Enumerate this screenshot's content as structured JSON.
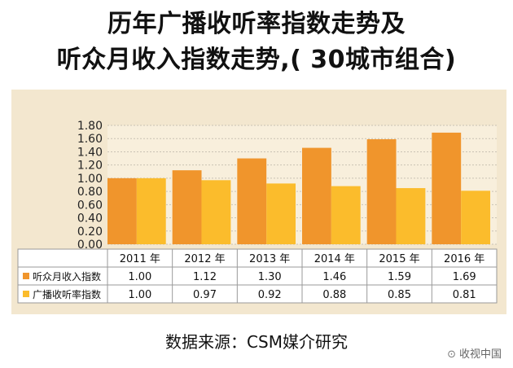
{
  "title_line1": "历年广播收听率指数走势及",
  "title_line2": "听众月收入指数走势,( 30城市组合)",
  "source": "数据来源：CSM媒介研究",
  "watermark": "收视中国",
  "chart_data": {
    "type": "bar",
    "categories": [
      "2011 年",
      "2012 年",
      "2013 年",
      "2014 年",
      "2015 年",
      "2016 年"
    ],
    "series": [
      {
        "name": "听众月收入指数",
        "values": [
          1.0,
          1.12,
          1.3,
          1.46,
          1.59,
          1.69
        ],
        "labels": [
          "1.00",
          "1.12",
          "1.30",
          "1.46",
          "1.59",
          "1.69"
        ],
        "color": "#f0952c"
      },
      {
        "name": "广播收听率指数",
        "values": [
          1.0,
          0.97,
          0.92,
          0.88,
          0.85,
          0.81
        ],
        "labels": [
          "1.00",
          "0.97",
          "0.92",
          "0.88",
          "0.85",
          "0.81"
        ],
        "color": "#fbbc2c"
      }
    ],
    "yticks": [
      "0.00",
      "0.20",
      "0.40",
      "0.60",
      "0.80",
      "1.00",
      "1.20",
      "1.40",
      "1.60",
      "1.80"
    ],
    "ylim": [
      0,
      1.8
    ],
    "grid": true,
    "legend": "data-table"
  }
}
